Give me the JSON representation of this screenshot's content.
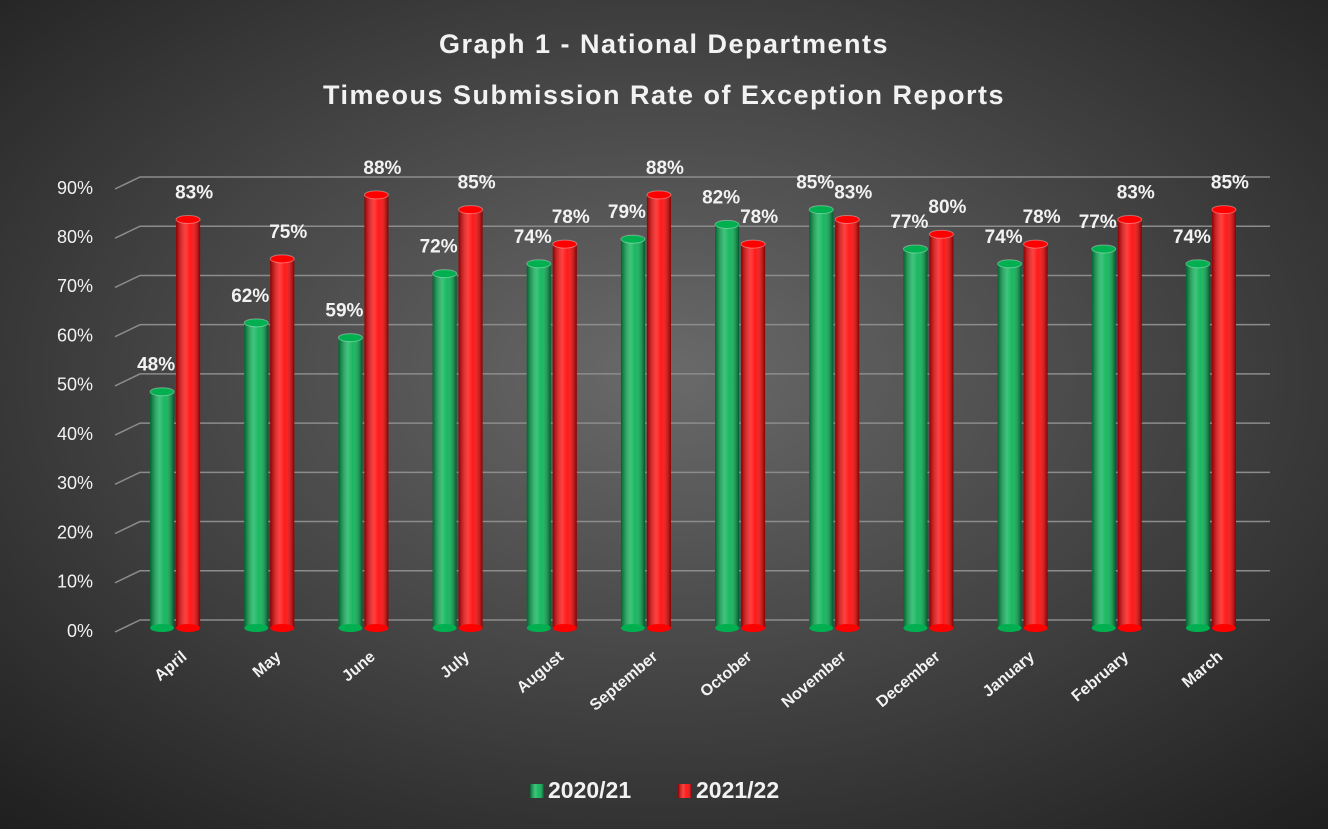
{
  "chart_data": {
    "type": "bar",
    "title": "Graph 1 - National Departments",
    "subtitle": "Timeous Submission Rate of Exception Reports",
    "categories": [
      "April",
      "May",
      "June",
      "July",
      "August",
      "September",
      "October",
      "November",
      "December",
      "January",
      "February",
      "March"
    ],
    "series": [
      {
        "name": "2020/21",
        "color": "#00b050",
        "values": [
          48,
          62,
          59,
          72,
          74,
          79,
          82,
          85,
          77,
          74,
          77,
          74
        ],
        "value_labels": [
          "48%",
          "62%",
          "59%",
          "72%",
          "74%",
          "79%",
          "82%",
          "85%",
          "77%",
          "74%",
          "77%",
          "74%"
        ]
      },
      {
        "name": "2021/22",
        "color": "#ff0000",
        "values": [
          83,
          75,
          88,
          85,
          78,
          88,
          78,
          83,
          80,
          78,
          83,
          85
        ],
        "value_labels": [
          "83%",
          "75%",
          "88%",
          "85%",
          "78%",
          "88%",
          "78%",
          "83%",
          "80%",
          "78%",
          "83%",
          "85%"
        ]
      }
    ],
    "ylim": [
      0,
      90
    ],
    "yticks": [
      {
        "value": 0,
        "label": "0%"
      },
      {
        "value": 10,
        "label": "10%"
      },
      {
        "value": 20,
        "label": "20%"
      },
      {
        "value": 30,
        "label": "30%"
      },
      {
        "value": 40,
        "label": "40%"
      },
      {
        "value": 50,
        "label": "50%"
      },
      {
        "value": 60,
        "label": "60%"
      },
      {
        "value": 70,
        "label": "70%"
      },
      {
        "value": 80,
        "label": "80%"
      },
      {
        "value": 90,
        "label": "90%"
      }
    ],
    "grid": true,
    "legend": "bottom"
  }
}
